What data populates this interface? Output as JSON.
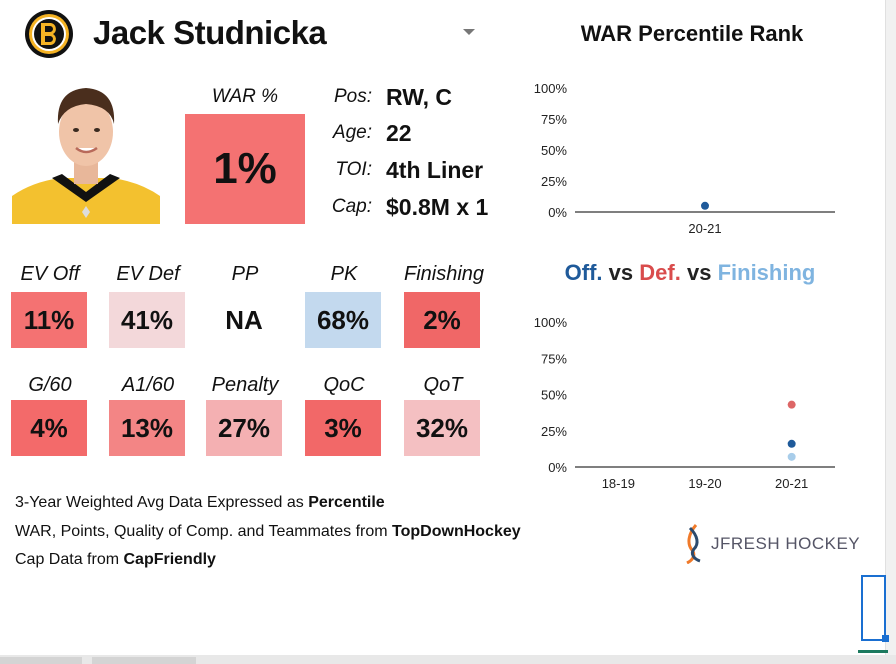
{
  "header": {
    "player_name": "Jack Studnicka",
    "team_logo": "bruins-logo-icon",
    "dropdown_icon": "caret-down-icon"
  },
  "war": {
    "label": "WAR %",
    "value": "1%",
    "color": "#f47272"
  },
  "info": [
    {
      "label": "Pos:",
      "value": "RW, C"
    },
    {
      "label": "Age:",
      "value": "22"
    },
    {
      "label": "TOI:",
      "value": "4th Liner"
    },
    {
      "label": "Cap:",
      "value": "$0.8M x 1"
    }
  ],
  "stats": [
    {
      "label": "EV Off",
      "value": "11%",
      "color": "#f47272"
    },
    {
      "label": "EV Def",
      "value": "41%",
      "color": "#f3d8da"
    },
    {
      "label": "PP",
      "value": "NA",
      "color": ""
    },
    {
      "label": "PK",
      "value": "68%",
      "color": "#c3d9ee"
    },
    {
      "label": "Finishing",
      "value": "2%",
      "color": "#f06767"
    },
    {
      "label": "G/60",
      "value": "4%",
      "color": "#f36a6a"
    },
    {
      "label": "A1/60",
      "value": "13%",
      "color": "#f38585"
    },
    {
      "label": "Penalty",
      "value": "27%",
      "color": "#f4b0b2"
    },
    {
      "label": "QoC",
      "value": "3%",
      "color": "#f26868"
    },
    {
      "label": "QoT",
      "value": "32%",
      "color": "#f4c0c2"
    }
  ],
  "footer": {
    "line1_prefix": "3-Year Weighted Avg Data Expressed as ",
    "line1_bold": "Percentile",
    "line2_prefix": "WAR, Points, Quality of Comp. and Teammates from ",
    "line2_bold": "TopDownHockey",
    "line3_prefix": "Cap Data from ",
    "line3_bold": "CapFriendly"
  },
  "brand": {
    "name": "JFRESH HOCKEY",
    "icon": "jfresh-logo-icon"
  },
  "chart_data": [
    {
      "type": "scatter",
      "title": "WAR Percentile Rank",
      "categories": [
        "20-21"
      ],
      "series": [
        {
          "name": "WAR",
          "values": [
            5
          ],
          "color": "#1f5a9a"
        }
      ],
      "ylim": [
        0,
        100
      ],
      "yticks": [
        "0%",
        "25%",
        "50%",
        "75%",
        "100%"
      ],
      "grid": false
    },
    {
      "type": "scatter",
      "title_parts": [
        "Off.",
        "vs",
        "Def.",
        "vs",
        "Finishing"
      ],
      "categories": [
        "18-19",
        "19-20",
        "20-21"
      ],
      "series": [
        {
          "name": "Off.",
          "values": [
            null,
            null,
            16
          ],
          "color": "#1f5a9a"
        },
        {
          "name": "Def.",
          "values": [
            null,
            null,
            43
          ],
          "color": "#dd6666"
        },
        {
          "name": "Finishing",
          "values": [
            null,
            null,
            7
          ],
          "color": "#a8cdea"
        }
      ],
      "ylim": [
        0,
        100
      ],
      "yticks": [
        "0%",
        "25%",
        "50%",
        "75%",
        "100%"
      ],
      "grid": false
    }
  ]
}
